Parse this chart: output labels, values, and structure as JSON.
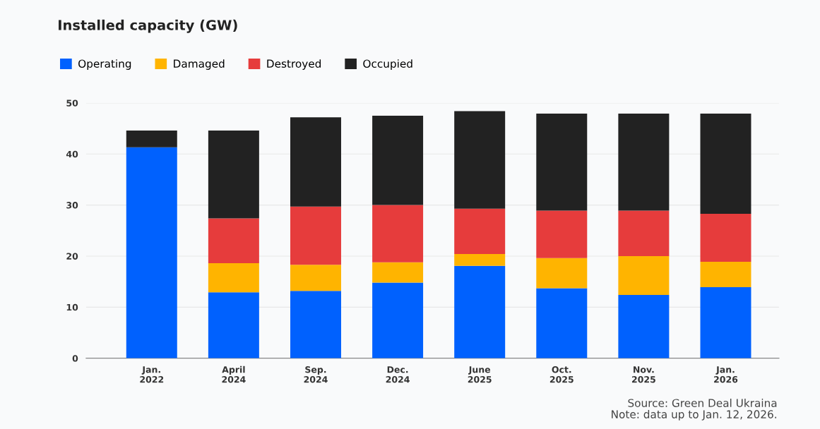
{
  "chart_data": {
    "type": "bar",
    "title": "Installed capacity (GW)",
    "categories": [
      "Jan.\n2022",
      "April\n2024",
      "Sep.\n2024",
      "Dec.\n2024",
      "June\n2025",
      "Oct.\n2025",
      "Nov.\n2025",
      "Jan.\n2026"
    ],
    "stacked": true,
    "series": [
      {
        "name": "Operating",
        "color": "#0061fe",
        "values": [
          41.3,
          12.9,
          13.2,
          14.8,
          18.1,
          13.7,
          12.4,
          13.9
        ]
      },
      {
        "name": "Damaged",
        "color": "#ffb400",
        "values": [
          0,
          5.7,
          5.1,
          4.0,
          2.3,
          5.9,
          7.6,
          5.0
        ]
      },
      {
        "name": "Destroyed",
        "color": "#e63c3c",
        "values": [
          0,
          8.8,
          11.4,
          11.2,
          8.9,
          9.3,
          8.9,
          9.4
        ]
      },
      {
        "name": "Occupied",
        "color": "#222222",
        "values": [
          3.3,
          17.2,
          17.5,
          17.5,
          19.1,
          19.0,
          19.0,
          19.6
        ]
      }
    ],
    "ylim": [
      0,
      50
    ],
    "yticks": [
      0,
      10,
      20,
      30,
      40,
      50
    ],
    "grid": "y",
    "legend": "top left",
    "annotations": [
      "Source: Green Deal Ukraina\nNote: data up to Jan. 12, 2026."
    ]
  }
}
